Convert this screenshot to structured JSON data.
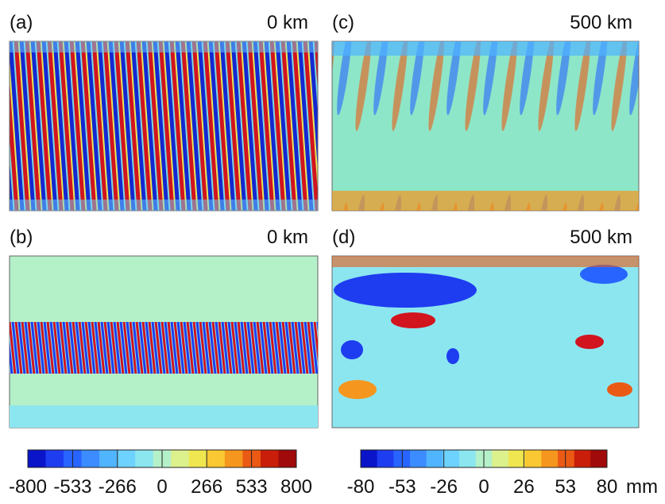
{
  "panels": [
    {
      "label": "(a)",
      "altitude": "0 km"
    },
    {
      "label": "(c)",
      "altitude": "500 km"
    },
    {
      "label": "(b)",
      "altitude": "0 km"
    },
    {
      "label": "(d)",
      "altitude": "500 km"
    }
  ],
  "colorbars": [
    {
      "lim": [
        -800,
        800
      ],
      "ticks": [
        -800,
        -533,
        -266,
        0,
        266,
        533,
        800
      ],
      "colors": [
        "#0a14c8",
        "#1e3cf0",
        "#2864ff",
        "#3c8cff",
        "#50b4ff",
        "#6ed2ff",
        "#8ce6f0",
        "#b4f0c8",
        "#dcf08c",
        "#f0e650",
        "#fac832",
        "#f5961e",
        "#eb5a14",
        "#c81e0a",
        "#a00a0a"
      ]
    },
    {
      "lim": [
        -80,
        80
      ],
      "ticks": [
        -80,
        -53,
        -26,
        0,
        26,
        53,
        80
      ],
      "unit": "mm",
      "colors": [
        "#0a14c8",
        "#1e3cf0",
        "#2864ff",
        "#3c8cff",
        "#50b4ff",
        "#6ed2ff",
        "#8ce6f0",
        "#b4f0c8",
        "#dcf08c",
        "#f0e650",
        "#fac832",
        "#f5961e",
        "#eb5a14",
        "#c81e0a",
        "#a00a0a"
      ]
    }
  ]
}
